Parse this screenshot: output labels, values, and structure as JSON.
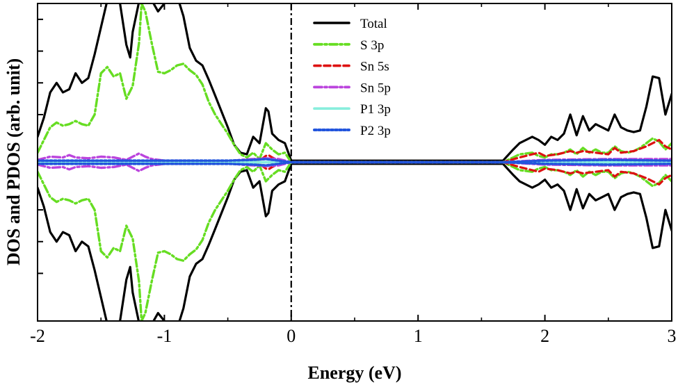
{
  "chart_data": {
    "type": "line",
    "xlabel": "Energy (eV)",
    "ylabel": "DOS and PDOS (arb. unit)",
    "xlim": [
      -2,
      3
    ],
    "ylim": [
      -10,
      10
    ],
    "x_ticks": [
      {
        "value": -2,
        "label": "-2"
      },
      {
        "value": -1,
        "label": "-1"
      },
      {
        "value": 0,
        "label": "0"
      },
      {
        "value": 1,
        "label": "1"
      },
      {
        "value": 2,
        "label": "2"
      },
      {
        "value": 3,
        "label": "3"
      }
    ],
    "x_minor_step": 0.5,
    "y_minor_ticks": [
      -7,
      -5,
      -3,
      3,
      5,
      7,
      9
    ],
    "y_tick_labels": false,
    "mirror_about_zero": true,
    "fermi_level": 0,
    "legend": {
      "position": "top-center"
    },
    "series": [
      {
        "name": "Total",
        "color": "#000000",
        "dash": "solid",
        "x": [
          -2.0,
          -1.95,
          -1.9,
          -1.85,
          -1.8,
          -1.75,
          -1.7,
          -1.65,
          -1.6,
          -1.55,
          -1.5,
          -1.45,
          -1.4,
          -1.35,
          -1.3,
          -1.27,
          -1.25,
          -1.2,
          -1.15,
          -1.1,
          -1.05,
          -1.0,
          -0.95,
          -0.9,
          -0.85,
          -0.8,
          -0.75,
          -0.7,
          -0.65,
          -0.6,
          -0.55,
          -0.5,
          -0.45,
          -0.4,
          -0.35,
          -0.3,
          -0.25,
          -0.2,
          -0.18,
          -0.15,
          -0.1,
          -0.05,
          0.0,
          1.67,
          1.75,
          1.8,
          1.9,
          1.95,
          2.0,
          2.05,
          2.1,
          2.15,
          2.2,
          2.25,
          2.3,
          2.35,
          2.4,
          2.45,
          2.5,
          2.55,
          2.6,
          2.65,
          2.7,
          2.75,
          2.8,
          2.85,
          2.9,
          2.95,
          3.0
        ],
        "y": [
          1.6,
          2.8,
          4.4,
          5.0,
          4.4,
          4.6,
          5.6,
          5.0,
          5.3,
          6.8,
          8.5,
          10.2,
          10.5,
          10.0,
          7.4,
          6.6,
          8.2,
          10.1,
          10.4,
          10.2,
          9.5,
          10.0,
          10.5,
          10.5,
          9.2,
          7.2,
          6.4,
          6.1,
          5.2,
          4.2,
          3.2,
          2.2,
          1.1,
          0.6,
          0.5,
          1.6,
          1.2,
          3.4,
          3.2,
          1.8,
          1.4,
          1.2,
          0.1,
          0.1,
          0.8,
          1.2,
          1.6,
          1.4,
          1.1,
          1.6,
          1.4,
          1.8,
          3.0,
          1.7,
          2.9,
          2.0,
          2.4,
          2.2,
          2.0,
          3.0,
          2.2,
          2.0,
          1.9,
          2.0,
          3.5,
          5.4,
          5.3,
          3.0,
          4.3
        ]
      },
      {
        "name": "S 3p",
        "color": "#66dd22",
        "dash": "dashdot",
        "x": [
          -2.0,
          -1.95,
          -1.9,
          -1.85,
          -1.8,
          -1.75,
          -1.7,
          -1.65,
          -1.6,
          -1.55,
          -1.5,
          -1.45,
          -1.4,
          -1.35,
          -1.3,
          -1.25,
          -1.2,
          -1.18,
          -1.15,
          -1.1,
          -1.05,
          -1.0,
          -0.95,
          -0.9,
          -0.85,
          -0.8,
          -0.75,
          -0.7,
          -0.65,
          -0.6,
          -0.55,
          -0.5,
          -0.45,
          -0.4,
          -0.35,
          -0.3,
          -0.25,
          -0.2,
          -0.15,
          -0.1,
          -0.05,
          0.0,
          1.67,
          1.75,
          1.8,
          1.9,
          1.95,
          2.0,
          2.05,
          2.1,
          2.15,
          2.2,
          2.25,
          2.3,
          2.35,
          2.4,
          2.45,
          2.5,
          2.55,
          2.6,
          2.65,
          2.7,
          2.75,
          2.8,
          2.85,
          2.9,
          2.95,
          3.0
        ],
        "y": [
          0.6,
          1.4,
          2.2,
          2.5,
          2.3,
          2.4,
          2.6,
          2.4,
          2.3,
          3.0,
          5.6,
          6.0,
          5.4,
          5.6,
          4.0,
          4.8,
          7.5,
          10.0,
          9.5,
          7.5,
          5.7,
          5.6,
          5.8,
          6.1,
          6.2,
          5.8,
          5.5,
          4.9,
          3.8,
          3.0,
          2.4,
          1.8,
          1.1,
          0.5,
          0.3,
          0.6,
          0.2,
          1.2,
          0.8,
          0.5,
          0.6,
          0.0,
          0.0,
          0.3,
          0.5,
          0.6,
          0.4,
          0.3,
          0.5,
          0.5,
          0.6,
          0.8,
          0.5,
          0.9,
          0.6,
          0.8,
          0.6,
          0.6,
          1.0,
          0.7,
          0.6,
          0.7,
          0.9,
          1.2,
          1.5,
          1.3,
          0.8,
          1.2
        ]
      },
      {
        "name": "Sn 5s",
        "color": "#dd1111",
        "dash": "dashed",
        "x": [
          -2.0,
          -1.5,
          -1.0,
          -0.5,
          -0.25,
          -0.2,
          -0.18,
          -0.15,
          -0.1,
          0.0,
          1.67,
          1.8,
          1.9,
          1.95,
          2.0,
          2.1,
          2.2,
          2.25,
          2.3,
          2.4,
          2.5,
          2.55,
          2.6,
          2.7,
          2.8,
          2.85,
          2.9,
          2.95,
          3.0
        ],
        "y": [
          0.0,
          0.0,
          0.0,
          0.05,
          0.1,
          0.4,
          0.45,
          0.3,
          0.1,
          0.0,
          0.0,
          0.3,
          0.5,
          0.6,
          0.4,
          0.5,
          0.7,
          0.6,
          0.7,
          0.6,
          0.5,
          0.9,
          0.6,
          0.7,
          1.0,
          1.2,
          1.4,
          1.0,
          0.8
        ]
      },
      {
        "name": "Sn 5p",
        "color": "#bb44dd",
        "dash": "dashdot",
        "x": [
          -2.0,
          -1.9,
          -1.8,
          -1.75,
          -1.7,
          -1.6,
          -1.5,
          -1.4,
          -1.3,
          -1.25,
          -1.2,
          -1.15,
          -1.1,
          -1.0,
          -0.9,
          -0.5,
          -0.4,
          -0.3,
          -0.2,
          -0.1,
          0.0,
          1.67,
          2.0,
          2.5,
          3.0
        ],
        "y": [
          0.15,
          0.35,
          0.3,
          0.45,
          0.3,
          0.25,
          0.35,
          0.3,
          0.15,
          0.35,
          0.55,
          0.35,
          0.2,
          0.1,
          0.1,
          0.05,
          0.15,
          0.2,
          0.25,
          0.2,
          0.0,
          0.0,
          0.15,
          0.2,
          0.2
        ]
      },
      {
        "name": "P1 3p",
        "color": "#88eedd",
        "dash": "solid",
        "x": [
          -2.0,
          -1.5,
          -1.0,
          -0.5,
          0.0,
          1.67,
          2.0,
          2.5,
          3.0
        ],
        "y": [
          0.05,
          0.05,
          0.05,
          0.05,
          0.0,
          0.0,
          0.05,
          0.05,
          0.05
        ]
      },
      {
        "name": "P2 3p",
        "color": "#2255dd",
        "dash": "dotted",
        "x": [
          -2.0,
          -1.5,
          -1.0,
          -0.5,
          -0.3,
          -0.2,
          0.0,
          1.67,
          2.0,
          2.5,
          3.0
        ],
        "y": [
          0.1,
          0.1,
          0.1,
          0.1,
          0.15,
          0.2,
          0.0,
          0.0,
          0.1,
          0.15,
          0.1
        ]
      }
    ]
  }
}
